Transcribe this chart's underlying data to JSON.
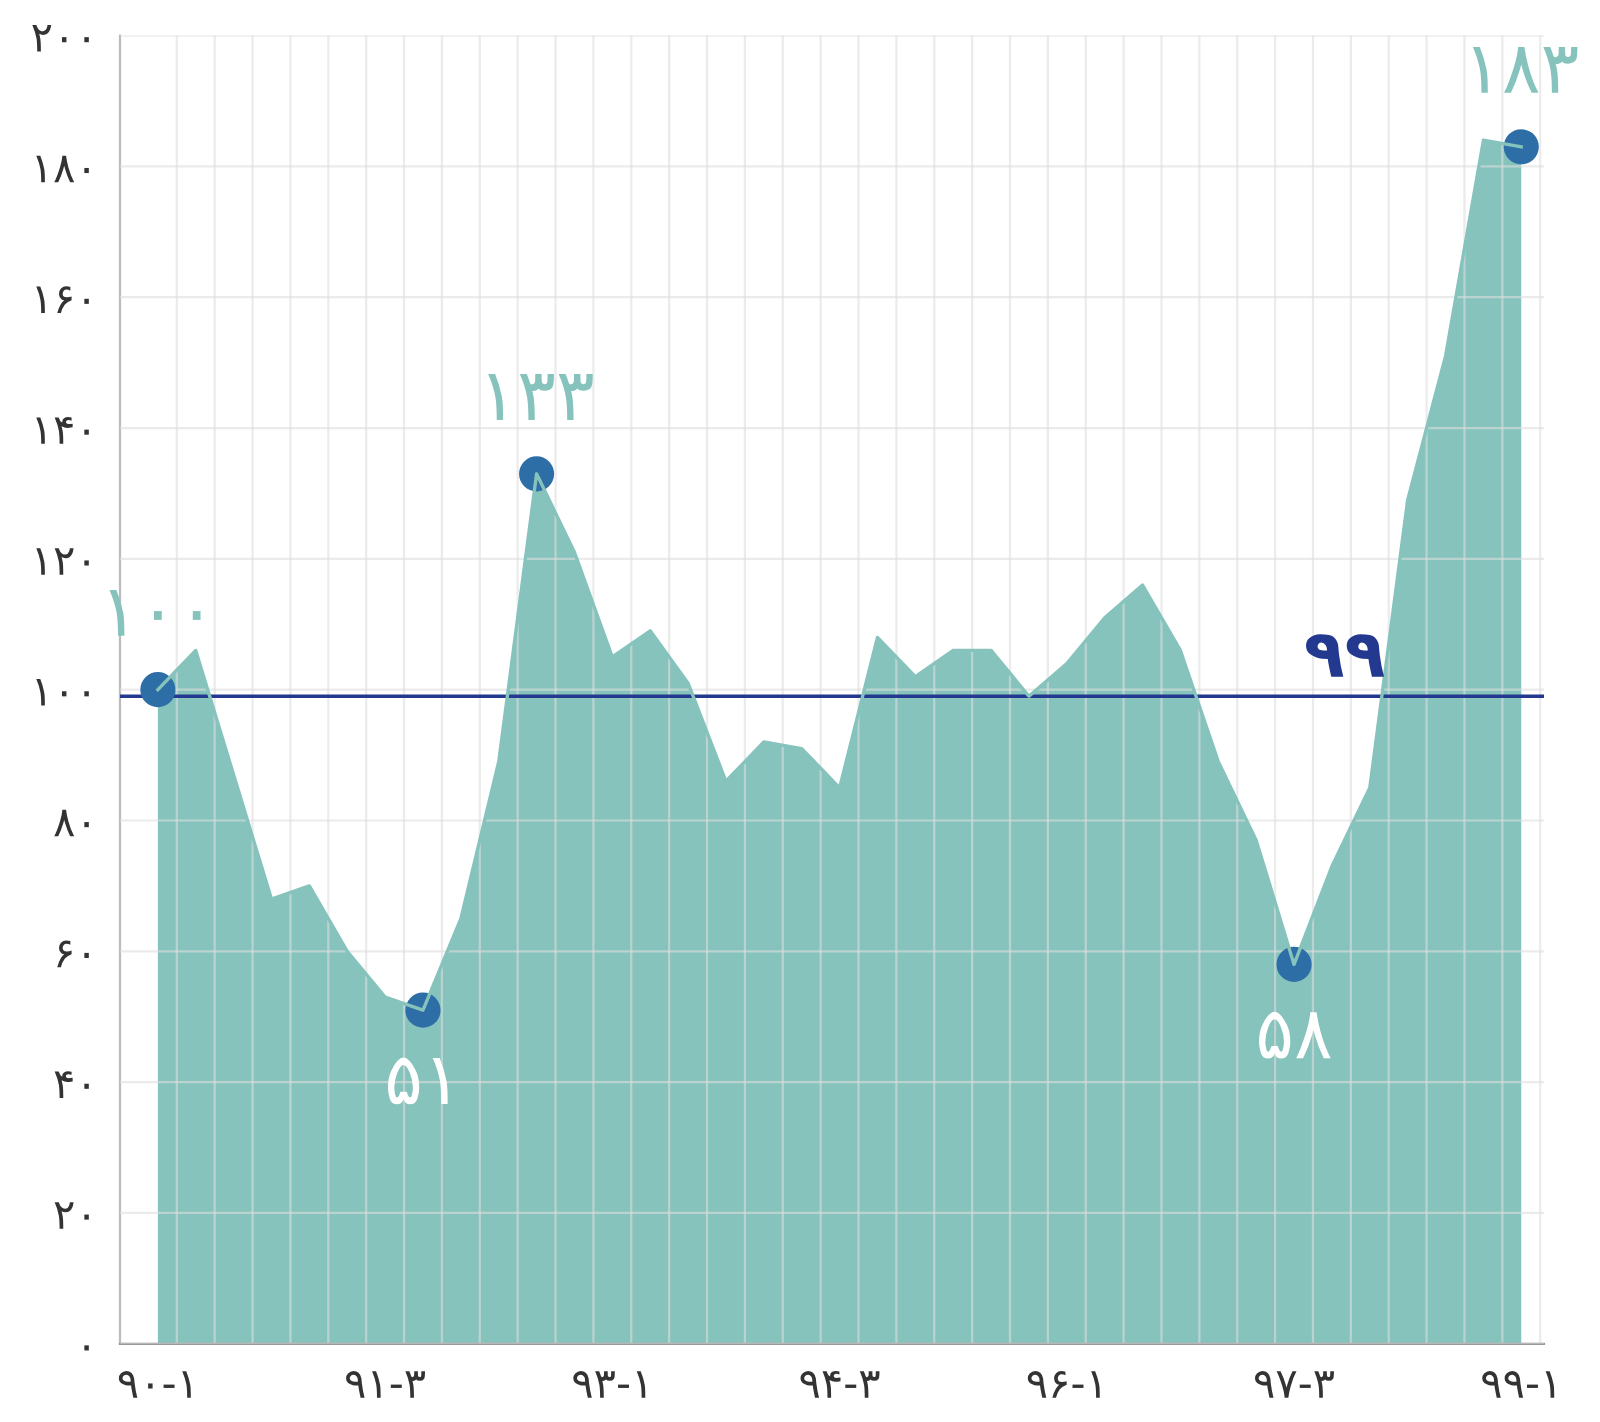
{
  "chart_data": {
    "type": "area",
    "categories": [
      "۹۰-۱",
      null,
      null,
      null,
      null,
      null,
      "۹۱-۳",
      null,
      null,
      null,
      null,
      null,
      "۹۳-۱",
      null,
      null,
      null,
      null,
      null,
      "۹۴-۳",
      null,
      null,
      null,
      null,
      null,
      "۹۶-۱",
      null,
      null,
      null,
      null,
      null,
      "۹۷-۳",
      null,
      null,
      null,
      null,
      null,
      "۹۹-۱"
    ],
    "series": [
      {
        "color": "#86c3bc",
        "values": [
          100,
          106,
          87,
          68,
          70,
          60,
          53,
          51,
          65,
          89,
          133,
          121,
          105,
          109,
          101,
          86,
          92,
          91,
          85,
          108,
          102,
          106,
          106,
          99,
          104,
          111,
          116,
          106,
          89,
          77,
          58,
          73,
          85,
          129,
          151,
          184,
          183
        ]
      },
      {
        "type": "scatter",
        "marker": "circle",
        "color": "#2e6ea6",
        "values": [
          100,
          null,
          null,
          null,
          null,
          null,
          null,
          51,
          null,
          null,
          133,
          null,
          null,
          null,
          null,
          null,
          null,
          null,
          null,
          null,
          null,
          null,
          null,
          null,
          null,
          null,
          null,
          null,
          null,
          null,
          58,
          null,
          null,
          null,
          null,
          null,
          183
        ],
        "value_labels": [
          "۱۰۰",
          null,
          null,
          null,
          null,
          null,
          null,
          "۵۱",
          null,
          null,
          "۱۳۳",
          null,
          null,
          null,
          null,
          null,
          null,
          null,
          null,
          null,
          null,
          null,
          null,
          null,
          null,
          null,
          null,
          null,
          null,
          null,
          "۵۸",
          null,
          null,
          null,
          null,
          null,
          "۱۸۳"
        ]
      }
    ],
    "ylim": [
      0,
      200
    ],
    "yticks": [
      {
        "value": 0,
        "label": "۰"
      },
      {
        "value": 20,
        "label": "۲۰"
      },
      {
        "value": 40,
        "label": "۴۰"
      },
      {
        "value": 60,
        "label": "۶۰"
      },
      {
        "value": 80,
        "label": "۸۰"
      },
      {
        "value": 100,
        "label": "۱۰۰"
      },
      {
        "value": 120,
        "label": "۱۲۰"
      },
      {
        "value": 140,
        "label": "۱۴۰"
      },
      {
        "value": 160,
        "label": "۱۶۰"
      },
      {
        "value": 180,
        "label": "۱۸۰"
      },
      {
        "value": 200,
        "label": "۲۰۰"
      }
    ],
    "ref_lines": [
      {
        "axis": "y",
        "value": 99,
        "label": "۹۹",
        "color": "#22398f"
      }
    ],
    "grid": true,
    "legend": false
  }
}
